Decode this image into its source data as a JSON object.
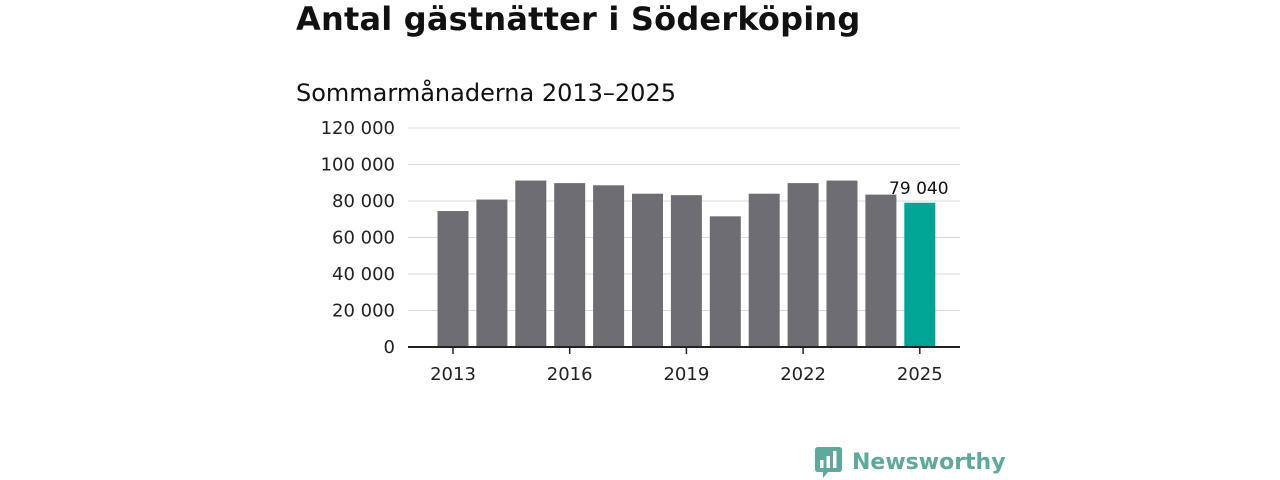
{
  "title": "Antal gästnätter i Söderköping",
  "subtitle": "Sommarmånaderna 2013–2025",
  "brand": {
    "name": "Newsworthy",
    "color": "#5fa89c",
    "icon": "bar-chart-speech-bubble-icon"
  },
  "chart_data": {
    "type": "bar",
    "title": "Antal gästnätter i Söderköping",
    "subtitle": "Sommarmånaderna 2013–2025",
    "xlabel": "",
    "ylabel": "",
    "categories": [
      "2013",
      "2014",
      "2015",
      "2016",
      "2017",
      "2018",
      "2019",
      "2020",
      "2021",
      "2022",
      "2023",
      "2024",
      "2025"
    ],
    "values": [
      74500,
      80800,
      91200,
      89800,
      88600,
      84000,
      83200,
      71600,
      84000,
      89800,
      91200,
      83500,
      79040
    ],
    "ylim": [
      0,
      120000
    ],
    "yticks": [
      0,
      20000,
      40000,
      60000,
      80000,
      100000,
      120000
    ],
    "ytick_labels": [
      "0",
      "20 000",
      "40 000",
      "60 000",
      "80 000",
      "100 000",
      "120 000"
    ],
    "xtick_labels": [
      "2013",
      "2016",
      "2019",
      "2022",
      "2025"
    ],
    "grid": true,
    "bar_color": "#6e6d73",
    "highlight_color": "#00a595",
    "highlight_index": 12,
    "highlight_label": "79 040"
  }
}
